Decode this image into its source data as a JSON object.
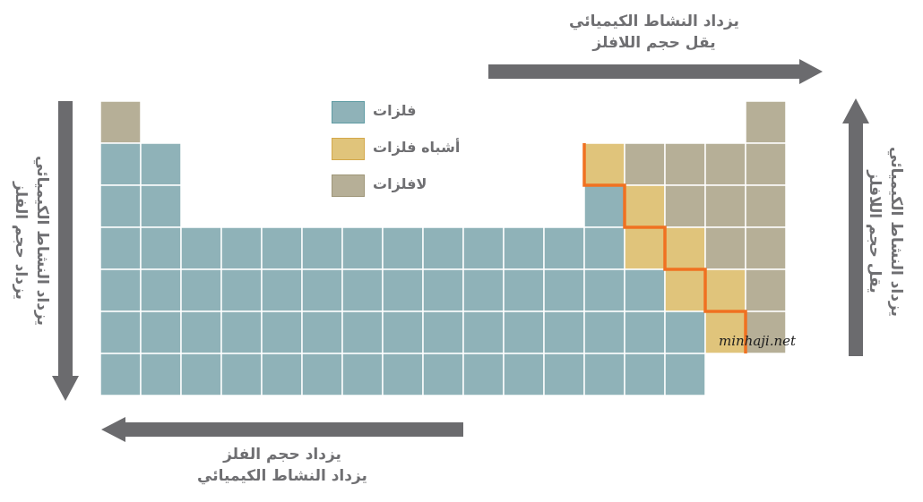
{
  "colors": {
    "metal": "#8fb2b8",
    "metalloid": "#e0c47b",
    "nonmetal": "#b6af97",
    "arrow": "#6b6b6e",
    "boundary": "#f07121",
    "grid_line": "#ffffff"
  },
  "legend": [
    {
      "category": "metal",
      "label": "فلزات"
    },
    {
      "category": "metalloid",
      "label": "أشباه فلزات"
    },
    {
      "category": "nonmetal",
      "label": "لافلزات"
    }
  ],
  "arrows": {
    "top": {
      "direction": "right",
      "lines": [
        "يزداد النشاط الكيميائي",
        "يقل حجم اللافلز"
      ]
    },
    "bottom": {
      "direction": "left",
      "lines": [
        "يزداد حجم الفلز",
        "يزداد النشاط الكيميائي"
      ]
    },
    "left": {
      "direction": "down",
      "lines": [
        "يزداد النشاط الكيميائي",
        "يزداد حجم الفلز"
      ]
    },
    "right": {
      "direction": "up",
      "lines": [
        "يزداد النشاط الكيميائي",
        "يقل حجم اللافلز"
      ]
    }
  },
  "table": {
    "rows": [
      "N...............N",
      "MM..........YNNNN",
      "MM..........MYNNN",
      "MMMMMMMMMMMMMYYNN",
      "MMMMMMMMMMMMMMYYN",
      "MMMMMMMMMMMMMMMYN",
      "MMMMMMMMMMMMMMM.."
    ],
    "key": {
      "M": "metal",
      "Y": "metalloid",
      "N": "nonmetal",
      ".": "empty"
    }
  },
  "watermark": "minhaji.net"
}
